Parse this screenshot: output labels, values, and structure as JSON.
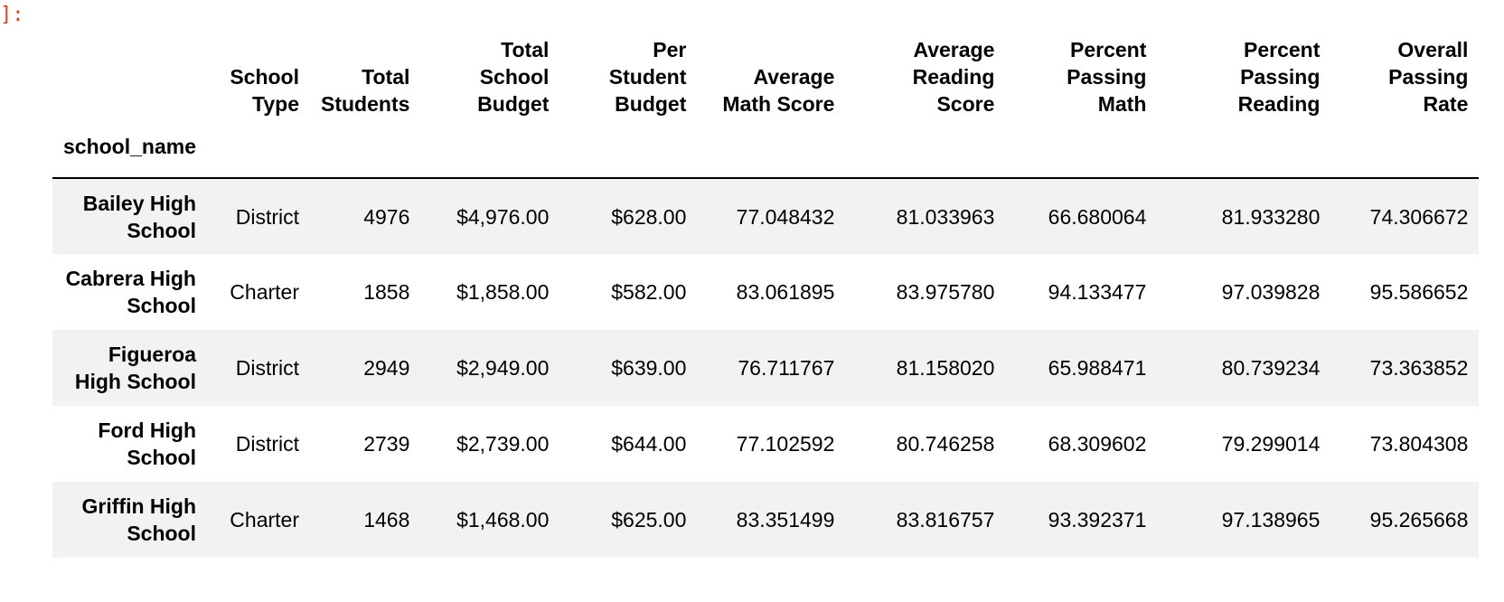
{
  "prompt": "]:",
  "table": {
    "index_name": "school_name",
    "columns": [
      {
        "line1": "",
        "line2": "School",
        "line3": "Type"
      },
      {
        "line1": "",
        "line2": "Total",
        "line3": "Students"
      },
      {
        "line1": "Total",
        "line2": "School",
        "line3": "Budget"
      },
      {
        "line1": "Per",
        "line2": "Student",
        "line3": "Budget"
      },
      {
        "line1": "",
        "line2": "Average",
        "line3": "Math Score"
      },
      {
        "line1": "Average",
        "line2": "Reading",
        "line3": "Score"
      },
      {
        "line1": "Percent",
        "line2": "Passing",
        "line3": "Math"
      },
      {
        "line1": "Percent",
        "line2": "Passing",
        "line3": "Reading"
      },
      {
        "line1": "Overall",
        "line2": "Passing",
        "line3": "Rate"
      }
    ],
    "rows": [
      {
        "name_line1": "Bailey High",
        "name_line2": "School",
        "school_type": "District",
        "total_students": "4976",
        "total_school_budget": "$4,976.00",
        "per_student_budget": "$628.00",
        "average_math_score": "77.048432",
        "average_reading_score": "81.033963",
        "percent_passing_math": "66.680064",
        "percent_passing_reading": "81.933280",
        "overall_passing_rate": "74.306672"
      },
      {
        "name_line1": "Cabrera High",
        "name_line2": "School",
        "school_type": "Charter",
        "total_students": "1858",
        "total_school_budget": "$1,858.00",
        "per_student_budget": "$582.00",
        "average_math_score": "83.061895",
        "average_reading_score": "83.975780",
        "percent_passing_math": "94.133477",
        "percent_passing_reading": "97.039828",
        "overall_passing_rate": "95.586652"
      },
      {
        "name_line1": "Figueroa",
        "name_line2": "High School",
        "school_type": "District",
        "total_students": "2949",
        "total_school_budget": "$2,949.00",
        "per_student_budget": "$639.00",
        "average_math_score": "76.711767",
        "average_reading_score": "81.158020",
        "percent_passing_math": "65.988471",
        "percent_passing_reading": "80.739234",
        "overall_passing_rate": "73.363852"
      },
      {
        "name_line1": "Ford High",
        "name_line2": "School",
        "school_type": "District",
        "total_students": "2739",
        "total_school_budget": "$2,739.00",
        "per_student_budget": "$644.00",
        "average_math_score": "77.102592",
        "average_reading_score": "80.746258",
        "percent_passing_math": "68.309602",
        "percent_passing_reading": "79.299014",
        "overall_passing_rate": "73.804308"
      },
      {
        "name_line1": "Griffin High",
        "name_line2": "School",
        "school_type": "Charter",
        "total_students": "1468",
        "total_school_budget": "$1,468.00",
        "per_student_budget": "$625.00",
        "average_math_score": "83.351499",
        "average_reading_score": "83.816757",
        "percent_passing_math": "93.392371",
        "percent_passing_reading": "97.138965",
        "overall_passing_rate": "95.265668"
      }
    ]
  },
  "colors": {
    "prompt": "#d84315",
    "row_stripe": "#f2f2f2",
    "header_rule": "#000000"
  }
}
